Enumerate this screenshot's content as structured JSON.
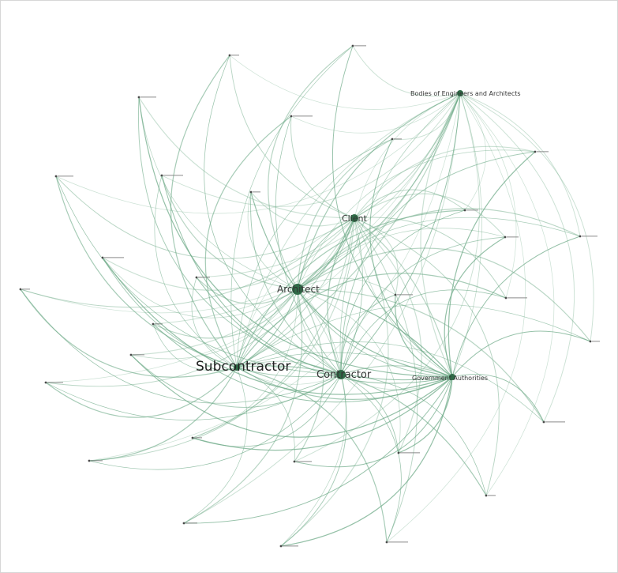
{
  "graph": {
    "edge_color": "#6aa884",
    "node_color": "#2f6b47",
    "hubs": [
      {
        "id": "org",
        "label": "Bodies of Engineers and Architects"
      },
      {
        "id": "client",
        "label": "Client"
      },
      {
        "id": "architect",
        "label": "Architect"
      },
      {
        "id": "subcontractor",
        "label": "Subcontractor"
      },
      {
        "id": "contractor",
        "label": "Contractor"
      },
      {
        "id": "gov",
        "label": "Government Authorities"
      }
    ],
    "peripheral": [
      {
        "id": "p1"
      },
      {
        "id": "p2"
      },
      {
        "id": "p3"
      },
      {
        "id": "p4"
      },
      {
        "id": "p5"
      },
      {
        "id": "p6"
      },
      {
        "id": "p7"
      },
      {
        "id": "p8"
      },
      {
        "id": "p9"
      },
      {
        "id": "p10"
      },
      {
        "id": "p11"
      },
      {
        "id": "p12"
      },
      {
        "id": "p13"
      },
      {
        "id": "p14"
      },
      {
        "id": "p15"
      },
      {
        "id": "p16"
      },
      {
        "id": "p17"
      },
      {
        "id": "p18"
      },
      {
        "id": "p19"
      },
      {
        "id": "p20"
      },
      {
        "id": "p21"
      },
      {
        "id": "p22"
      },
      {
        "id": "p23"
      },
      {
        "id": "p24"
      },
      {
        "id": "p25"
      },
      {
        "id": "p26"
      },
      {
        "id": "p27"
      },
      {
        "id": "p28"
      },
      {
        "id": "p29"
      },
      {
        "id": "p30"
      }
    ]
  }
}
